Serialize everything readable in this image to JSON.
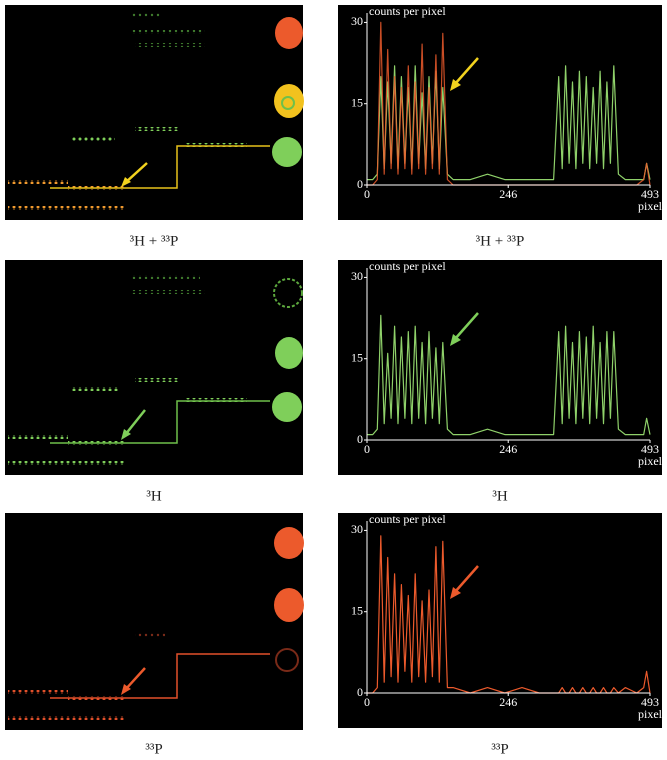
{
  "images": [
    {
      "caption": "³H + ³³P"
    },
    {
      "caption": "³H"
    },
    {
      "caption": "³³P"
    }
  ],
  "chart_data": [
    {
      "type": "line",
      "caption": "³H + ³³P",
      "ylabel": "counts per pixel",
      "xlabel": "pixel",
      "xlim": [
        0,
        493
      ],
      "xticks": [
        0,
        246,
        493
      ],
      "ylim": [
        0,
        31
      ],
      "yticks": [
        0,
        15,
        30
      ],
      "x": [
        0,
        10,
        18,
        24,
        30,
        36,
        42,
        48,
        54,
        60,
        66,
        72,
        78,
        84,
        90,
        96,
        102,
        108,
        114,
        120,
        126,
        132,
        140,
        150,
        180,
        210,
        240,
        270,
        300,
        325,
        334,
        340,
        346,
        352,
        358,
        364,
        370,
        376,
        382,
        388,
        394,
        400,
        406,
        412,
        418,
        424,
        430,
        438,
        450,
        470,
        482,
        487,
        493
      ],
      "series": [
        {
          "color": "#8fd16a",
          "values": [
            1,
            1,
            2,
            20,
            3,
            19,
            4,
            22,
            3,
            20,
            4,
            18,
            3,
            22,
            4,
            17,
            3,
            20,
            4,
            21,
            3,
            18,
            2,
            1,
            1,
            2,
            1,
            1,
            1,
            1,
            20,
            3,
            22,
            4,
            19,
            3,
            21,
            4,
            20,
            3,
            18,
            4,
            21,
            3,
            19,
            4,
            22,
            2,
            1,
            1,
            1,
            4,
            1
          ]
        },
        {
          "color": "#ec5a2c",
          "values": [
            0,
            0,
            1,
            30,
            2,
            25,
            3,
            20,
            2,
            18,
            3,
            22,
            2,
            19,
            3,
            26,
            2,
            18,
            3,
            24,
            2,
            28,
            1,
            0,
            0,
            0,
            0,
            0,
            0,
            0,
            0,
            0,
            0,
            0,
            0,
            0,
            0,
            0,
            0,
            0,
            0,
            0,
            0,
            0,
            0,
            0,
            0,
            0,
            0,
            0,
            1,
            4,
            0
          ]
        }
      ]
    },
    {
      "type": "line",
      "caption": "³H",
      "ylabel": "counts per pixel",
      "xlabel": "pixel",
      "xlim": [
        0,
        493
      ],
      "xticks": [
        0,
        246,
        493
      ],
      "ylim": [
        0,
        31
      ],
      "yticks": [
        0,
        15,
        30
      ],
      "x": [
        0,
        10,
        18,
        24,
        30,
        36,
        42,
        48,
        54,
        60,
        66,
        72,
        78,
        84,
        90,
        96,
        102,
        108,
        114,
        120,
        126,
        132,
        140,
        150,
        180,
        210,
        240,
        270,
        300,
        325,
        334,
        340,
        346,
        352,
        358,
        364,
        370,
        376,
        382,
        388,
        394,
        400,
        406,
        412,
        418,
        424,
        430,
        438,
        450,
        470,
        482,
        487,
        493
      ],
      "series": [
        {
          "color": "#8fd16a",
          "values": [
            1,
            1,
            2,
            23,
            3,
            16,
            4,
            21,
            3,
            19,
            4,
            20,
            3,
            21,
            4,
            18,
            3,
            20,
            4,
            17,
            3,
            18,
            2,
            1,
            1,
            2,
            1,
            1,
            1,
            1,
            20,
            3,
            21,
            4,
            18,
            3,
            20,
            4,
            19,
            3,
            21,
            4,
            18,
            3,
            20,
            4,
            20,
            2,
            1,
            1,
            1,
            4,
            1
          ]
        }
      ]
    },
    {
      "type": "line",
      "caption": "³³P",
      "ylabel": "counts per pixel",
      "xlabel": "pixel",
      "xlim": [
        0,
        493
      ],
      "xticks": [
        0,
        246,
        493
      ],
      "ylim": [
        0,
        31
      ],
      "yticks": [
        0,
        15,
        30
      ],
      "x": [
        0,
        10,
        18,
        24,
        30,
        36,
        42,
        48,
        54,
        60,
        66,
        72,
        78,
        84,
        90,
        96,
        102,
        108,
        114,
        120,
        126,
        132,
        140,
        150,
        180,
        210,
        240,
        270,
        300,
        325,
        334,
        340,
        346,
        352,
        358,
        364,
        370,
        376,
        382,
        388,
        394,
        400,
        406,
        412,
        418,
        424,
        430,
        438,
        450,
        470,
        482,
        487,
        493
      ],
      "series": [
        {
          "color": "#ec5a2c",
          "values": [
            0,
            0,
            1,
            29,
            2,
            25,
            3,
            22,
            2,
            20,
            4,
            18,
            2,
            22,
            3,
            17,
            2,
            19,
            3,
            27,
            2,
            28,
            1,
            1,
            0,
            1,
            0,
            1,
            0,
            0,
            0,
            1,
            0,
            0,
            1,
            0,
            0,
            1,
            0,
            0,
            1,
            0,
            0,
            1,
            0,
            0,
            1,
            0,
            1,
            0,
            1,
            4,
            0
          ]
        }
      ]
    }
  ]
}
